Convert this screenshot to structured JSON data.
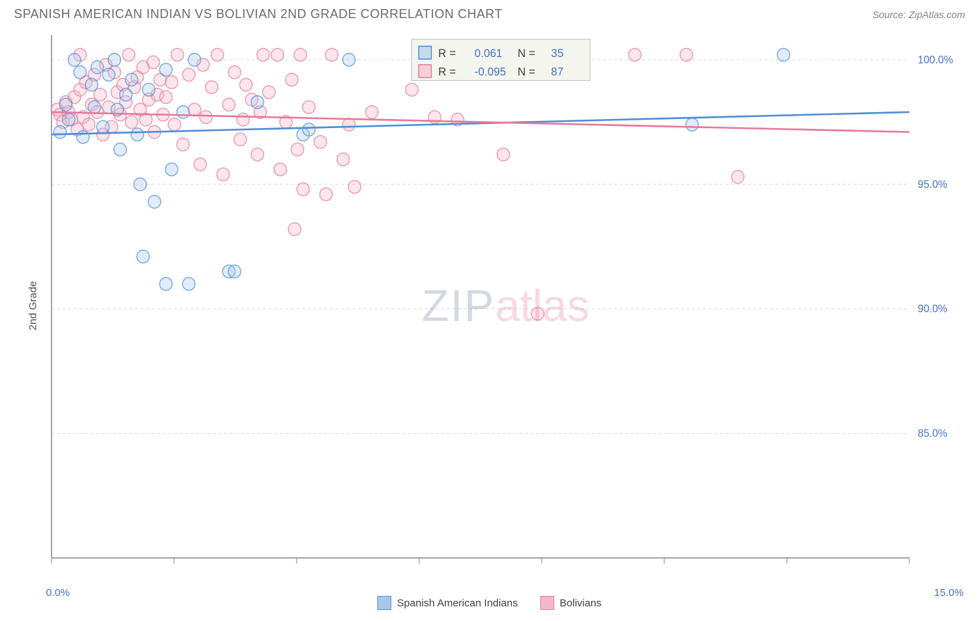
{
  "title": "SPANISH AMERICAN INDIAN VS BOLIVIAN 2ND GRADE CORRELATION CHART",
  "source": "Source: ZipAtlas.com",
  "ylabel": "2nd Grade",
  "chart": {
    "type": "scatter",
    "xlim": [
      0,
      15
    ],
    "ylim": [
      80,
      101
    ],
    "xtick_count": 8,
    "ytick_values": [
      85,
      90,
      95,
      100
    ],
    "ytick_labels": [
      "85.0%",
      "90.0%",
      "95.0%",
      "100.0%"
    ],
    "x_min_label": "0.0%",
    "x_max_label": "15.0%",
    "grid_color": "#d8d8d8",
    "axis_color": "#888888",
    "tick_label_color": "#4472c4",
    "background": "#ffffff",
    "marker_radius": 9,
    "marker_opacity": 0.35,
    "marker_stroke_opacity": 0.7,
    "series": [
      {
        "name": "Spanish American Indians",
        "color": "#4f8ed6",
        "fill": "#a8c8ea",
        "R": "0.061",
        "N": "35",
        "trend": {
          "y_at_xmin": 97.0,
          "y_at_xmax": 97.9
        },
        "points": [
          [
            0.15,
            97.1
          ],
          [
            0.25,
            98.2
          ],
          [
            0.3,
            97.6
          ],
          [
            0.4,
            100.0
          ],
          [
            0.5,
            99.5
          ],
          [
            0.55,
            96.9
          ],
          [
            0.7,
            99.0
          ],
          [
            0.75,
            98.1
          ],
          [
            0.8,
            99.7
          ],
          [
            0.9,
            97.3
          ],
          [
            1.0,
            99.4
          ],
          [
            1.1,
            100.0
          ],
          [
            1.15,
            98.0
          ],
          [
            1.2,
            96.4
          ],
          [
            1.3,
            98.6
          ],
          [
            1.4,
            99.2
          ],
          [
            1.5,
            97.0
          ],
          [
            1.55,
            95.0
          ],
          [
            1.6,
            92.1
          ],
          [
            1.7,
            98.8
          ],
          [
            1.8,
            94.3
          ],
          [
            2.0,
            99.6
          ],
          [
            2.0,
            91.0
          ],
          [
            2.1,
            95.6
          ],
          [
            2.3,
            97.9
          ],
          [
            2.4,
            91.0
          ],
          [
            2.5,
            100.0
          ],
          [
            3.1,
            91.5
          ],
          [
            3.2,
            91.5
          ],
          [
            3.6,
            98.3
          ],
          [
            4.4,
            97.0
          ],
          [
            4.5,
            97.2
          ],
          [
            5.2,
            100.0
          ],
          [
            11.2,
            97.4
          ],
          [
            12.8,
            100.2
          ]
        ]
      },
      {
        "name": "Bolivians",
        "color": "#e67a9a",
        "fill": "#f5b8c9",
        "R": "-0.095",
        "N": "87",
        "trend": {
          "y_at_xmin": 97.9,
          "y_at_xmax": 97.1
        },
        "points": [
          [
            0.1,
            98.0
          ],
          [
            0.15,
            97.8
          ],
          [
            0.2,
            97.5
          ],
          [
            0.25,
            98.3
          ],
          [
            0.3,
            97.9
          ],
          [
            0.35,
            97.6
          ],
          [
            0.4,
            98.5
          ],
          [
            0.45,
            97.2
          ],
          [
            0.5,
            98.8
          ],
          [
            0.5,
            100.2
          ],
          [
            0.55,
            97.7
          ],
          [
            0.6,
            99.1
          ],
          [
            0.65,
            97.4
          ],
          [
            0.7,
            98.2
          ],
          [
            0.75,
            99.4
          ],
          [
            0.8,
            97.9
          ],
          [
            0.85,
            98.6
          ],
          [
            0.9,
            97.0
          ],
          [
            0.95,
            99.8
          ],
          [
            1.0,
            98.1
          ],
          [
            1.05,
            97.3
          ],
          [
            1.1,
            99.5
          ],
          [
            1.15,
            98.7
          ],
          [
            1.2,
            97.8
          ],
          [
            1.25,
            99.0
          ],
          [
            1.3,
            98.3
          ],
          [
            1.35,
            100.2
          ],
          [
            1.4,
            97.5
          ],
          [
            1.45,
            98.9
          ],
          [
            1.5,
            99.3
          ],
          [
            1.55,
            98.0
          ],
          [
            1.6,
            99.7
          ],
          [
            1.65,
            97.6
          ],
          [
            1.7,
            98.4
          ],
          [
            1.78,
            99.9
          ],
          [
            1.8,
            97.1
          ],
          [
            1.85,
            98.6
          ],
          [
            1.9,
            99.2
          ],
          [
            1.95,
            97.8
          ],
          [
            2.0,
            98.5
          ],
          [
            2.1,
            99.1
          ],
          [
            2.15,
            97.4
          ],
          [
            2.2,
            100.2
          ],
          [
            2.3,
            96.6
          ],
          [
            2.4,
            99.4
          ],
          [
            2.5,
            98.0
          ],
          [
            2.6,
            95.8
          ],
          [
            2.65,
            99.8
          ],
          [
            2.7,
            97.7
          ],
          [
            2.8,
            98.9
          ],
          [
            2.9,
            100.2
          ],
          [
            3.0,
            95.4
          ],
          [
            3.1,
            98.2
          ],
          [
            3.2,
            99.5
          ],
          [
            3.3,
            96.8
          ],
          [
            3.35,
            97.6
          ],
          [
            3.4,
            99.0
          ],
          [
            3.5,
            98.4
          ],
          [
            3.6,
            96.2
          ],
          [
            3.65,
            97.9
          ],
          [
            3.7,
            100.2
          ],
          [
            3.8,
            98.7
          ],
          [
            3.95,
            100.2
          ],
          [
            4.0,
            95.6
          ],
          [
            4.1,
            97.5
          ],
          [
            4.2,
            99.2
          ],
          [
            4.25,
            93.2
          ],
          [
            4.3,
            96.4
          ],
          [
            4.35,
            100.2
          ],
          [
            4.4,
            94.8
          ],
          [
            4.5,
            98.1
          ],
          [
            4.7,
            96.7
          ],
          [
            4.8,
            94.6
          ],
          [
            4.9,
            100.2
          ],
          [
            5.1,
            96.0
          ],
          [
            5.2,
            97.4
          ],
          [
            5.3,
            94.9
          ],
          [
            5.6,
            97.9
          ],
          [
            6.3,
            98.8
          ],
          [
            6.7,
            97.7
          ],
          [
            7.1,
            97.6
          ],
          [
            7.5,
            100.2
          ],
          [
            7.9,
            96.2
          ],
          [
            8.5,
            89.8
          ],
          [
            10.2,
            100.2
          ],
          [
            11.1,
            100.2
          ],
          [
            12.0,
            95.3
          ]
        ]
      }
    ],
    "legend_box": {
      "label_R": "R =",
      "label_N": "N =",
      "value_color": "#4472c4",
      "box_border": "#bfbfbf",
      "box_fill": "#f5f5f0"
    },
    "bottom_legend": [
      {
        "label": "Spanish American Indians",
        "fill": "#a8c8ea",
        "border": "#4f8ed6"
      },
      {
        "label": "Bolivians",
        "fill": "#f5b8c9",
        "border": "#e67a9a"
      }
    ]
  },
  "watermark": {
    "part1": "ZIP",
    "part2": "atlas"
  }
}
